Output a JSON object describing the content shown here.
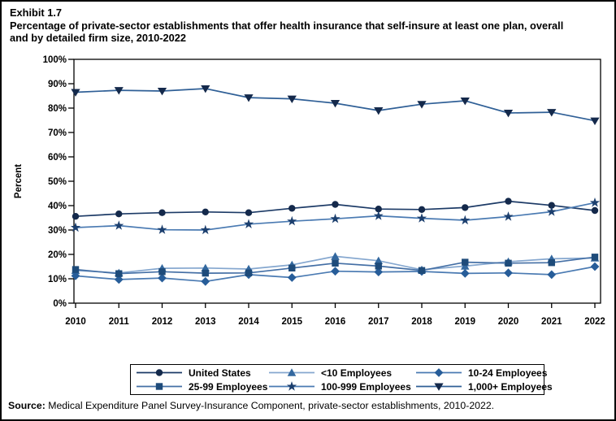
{
  "header": {
    "exhibit": "Exhibit 1.7",
    "title_line1": "Percentage of private-sector establishments that offer health insurance that self-insure at least one plan, overall",
    "title_line2": "and by detailed firm size, 2010-2022"
  },
  "chart_data": {
    "type": "line",
    "title": "Percentage of private-sector establishments that offer health insurance that self-insure at least one plan, overall and by detailed firm size, 2010-2022",
    "x": [
      2010,
      2011,
      2012,
      2013,
      2014,
      2015,
      2016,
      2017,
      2018,
      2019,
      2020,
      2021,
      2022
    ],
    "xlabel": "",
    "ylabel": "Percent",
    "ylim": [
      0,
      100
    ],
    "ytick_step": 10,
    "ytick_suffix": "%",
    "grid": false,
    "legend_position": "bottom-box",
    "axis_color": "#000000",
    "series": [
      {
        "name": "United States",
        "marker": "circle",
        "color": "#14294b",
        "line_color": "#1c3a66",
        "values": [
          35.6,
          36.6,
          37.1,
          37.4,
          37.1,
          38.9,
          40.5,
          38.6,
          38.4,
          39.2,
          41.8,
          40.1,
          38.0
        ]
      },
      {
        "name": "<10 Employees",
        "marker": "triangle-up",
        "color": "#33689f",
        "line_color": "#85a7cf",
        "values": [
          13.4,
          12.4,
          14.3,
          14.4,
          14.0,
          15.7,
          19.2,
          17.4,
          13.7,
          15.2,
          17.0,
          18.2,
          18.5
        ]
      },
      {
        "name": "10-24 Employees",
        "marker": "diamond",
        "color": "#275d99",
        "line_color": "#4a7ab2",
        "values": [
          11.2,
          9.7,
          10.3,
          8.9,
          11.7,
          10.5,
          13.1,
          12.8,
          13.0,
          12.2,
          12.4,
          11.7,
          15.0
        ]
      },
      {
        "name": "25-99 Employees",
        "marker": "square",
        "color": "#1e4b7a",
        "line_color": "#446fa5",
        "values": [
          13.8,
          12.1,
          12.9,
          12.3,
          12.4,
          14.4,
          16.4,
          15.2,
          13.4,
          16.8,
          16.4,
          16.6,
          18.9
        ]
      },
      {
        "name": "100-999 Employees",
        "marker": "star",
        "color": "#1c3f6e",
        "line_color": "#4a7ab2",
        "values": [
          31.0,
          31.8,
          30.1,
          30.0,
          32.4,
          33.6,
          34.6,
          35.8,
          34.8,
          34.0,
          35.5,
          37.5,
          41.2
        ]
      },
      {
        "name": "1,000+ Employees",
        "marker": "triangle-down",
        "color": "#14294b",
        "line_color": "#2f5f96",
        "values": [
          86.5,
          87.3,
          87.0,
          88.0,
          84.3,
          83.8,
          82.0,
          79.0,
          81.6,
          83.0,
          78.0,
          78.3,
          74.8
        ]
      }
    ]
  },
  "source": {
    "label": "Source:",
    "text": " Medical Expenditure Panel Survey-Insurance Component, private-sector establishments, 2010-2022."
  }
}
